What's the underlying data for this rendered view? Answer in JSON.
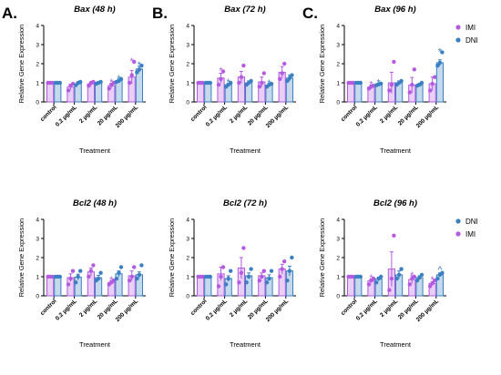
{
  "figure": {
    "panel_letters": [
      "A.",
      "B.",
      "C."
    ],
    "colors": {
      "IMI": "#b45ae0",
      "DNI": "#3a7fc1"
    }
  },
  "chart_data": [
    {
      "type": "bar",
      "letter": "A.",
      "title": "Bax (48 h)",
      "ylabel": "Relative Gene Expression",
      "xlabel": "Treatment",
      "ylim": [
        0,
        4
      ],
      "yticks": [
        0,
        1,
        2,
        3,
        4
      ],
      "grid": false,
      "categories": [
        "control",
        "0.2 µg/mL",
        "2 µg/mL",
        "20 µg/mL",
        "200 µg/mL"
      ],
      "series": [
        {
          "name": "IMI",
          "values": [
            1.0,
            0.78,
            0.95,
            0.85,
            1.3
          ],
          "errors": [
            0.03,
            0.15,
            0.1,
            0.12,
            0.35
          ],
          "points": [
            [
              1.0,
              1.0,
              1.0
            ],
            [
              0.6,
              0.85,
              0.95
            ],
            [
              0.85,
              1.0,
              1.05
            ],
            [
              0.7,
              0.9,
              1.0
            ],
            [
              1.0,
              1.4,
              2.1
            ]
          ],
          "marks": [
            "",
            "",
            "",
            "*",
            "*"
          ]
        },
        {
          "name": "DNI",
          "values": [
            1.0,
            0.95,
            1.0,
            1.12,
            1.72
          ],
          "errors": [
            0.03,
            0.08,
            0.06,
            0.08,
            0.15
          ],
          "points": [
            [
              1.0,
              1.0,
              1.0
            ],
            [
              0.88,
              1.0,
              1.05
            ],
            [
              0.95,
              1.0,
              1.05
            ],
            [
              1.05,
              1.1,
              1.2
            ],
            [
              1.55,
              1.7,
              1.9
            ]
          ],
          "marks": [
            "",
            "",
            "",
            "*",
            "*"
          ]
        }
      ]
    },
    {
      "type": "bar",
      "letter": "B.",
      "title": "Bax (72 h)",
      "ylabel": "Relative Gene Expression",
      "xlabel": "Treatment",
      "ylim": [
        0,
        4
      ],
      "yticks": [
        0,
        1,
        2,
        3,
        4
      ],
      "grid": false,
      "categories": [
        "control",
        "0.2 µg/mL",
        "2 µg/mL",
        "20 µg/mL",
        "200 µg/mL"
      ],
      "series": [
        {
          "name": "IMI",
          "values": [
            1.0,
            1.25,
            1.3,
            1.05,
            1.55
          ],
          "errors": [
            0.03,
            0.25,
            0.3,
            0.25,
            0.3
          ],
          "points": [
            [
              1.0,
              1.0,
              1.0
            ],
            [
              0.9,
              1.2,
              1.6
            ],
            [
              1.0,
              1.3,
              1.9
            ],
            [
              0.8,
              1.0,
              1.5
            ],
            [
              1.2,
              1.5,
              2.0
            ]
          ],
          "marks": [
            "",
            "*",
            "",
            "",
            ""
          ]
        },
        {
          "name": "DNI",
          "values": [
            1.0,
            0.9,
            1.0,
            0.88,
            1.25
          ],
          "errors": [
            0.03,
            0.08,
            0.1,
            0.08,
            0.15
          ],
          "points": [
            [
              1.0,
              1.0,
              1.0
            ],
            [
              0.8,
              0.9,
              1.0
            ],
            [
              0.9,
              1.0,
              1.1
            ],
            [
              0.8,
              0.9,
              0.95
            ],
            [
              1.1,
              1.25,
              1.4
            ]
          ],
          "marks": [
            "",
            "*",
            "",
            "*",
            ""
          ]
        }
      ]
    },
    {
      "type": "bar",
      "letter": "C.",
      "title": "Bax (96 h)",
      "ylabel": "Relative Gene Expression",
      "xlabel": "Treatment",
      "ylim": [
        0,
        4
      ],
      "yticks": [
        0,
        1,
        2,
        3,
        4
      ],
      "grid": false,
      "legend": [
        "IMI",
        "DNI"
      ],
      "legend_position": "top-right",
      "categories": [
        "control",
        "0.2 µg/mL",
        "2 µg/mL",
        "20 µg/mL",
        "200 µg/mL"
      ],
      "series": [
        {
          "name": "IMI",
          "values": [
            1.0,
            0.78,
            1.0,
            0.88,
            0.95
          ],
          "errors": [
            0.03,
            0.1,
            0.55,
            0.4,
            0.35
          ],
          "points": [
            [
              1.0,
              1.0,
              1.0
            ],
            [
              0.7,
              0.8,
              0.85
            ],
            [
              0.6,
              0.9,
              2.1
            ],
            [
              0.5,
              0.9,
              1.7
            ],
            [
              0.6,
              0.95,
              1.3
            ]
          ],
          "marks": [
            "",
            "*",
            "",
            "",
            ""
          ]
        },
        {
          "name": "DNI",
          "values": [
            1.0,
            0.92,
            1.0,
            0.9,
            2.05
          ],
          "errors": [
            0.03,
            0.05,
            0.1,
            0.08,
            0.15
          ],
          "points": [
            [
              1.0,
              1.0,
              1.0
            ],
            [
              0.88,
              0.92,
              0.96
            ],
            [
              0.9,
              1.0,
              1.1
            ],
            [
              0.85,
              0.9,
              1.0
            ],
            [
              1.9,
              2.05,
              2.6
            ]
          ],
          "marks": [
            "",
            "*",
            "",
            "",
            "*"
          ]
        }
      ]
    },
    {
      "type": "bar",
      "letter": "",
      "title": "Bcl2 (48 h)",
      "ylabel": "Relative Gene Expression",
      "xlabel": "Treatment",
      "ylim": [
        0,
        4
      ],
      "yticks": [
        0,
        1,
        2,
        3,
        4
      ],
      "grid": false,
      "categories": [
        "control",
        "0.2 µg/mL",
        "2 µg/mL",
        "20 µg/mL",
        "200 µg/mL"
      ],
      "series": [
        {
          "name": "IMI",
          "values": [
            1.0,
            0.95,
            1.25,
            0.7,
            1.05
          ],
          "errors": [
            0.03,
            0.2,
            0.2,
            0.1,
            0.25
          ],
          "points": [
            [
              1.0,
              1.0,
              1.0
            ],
            [
              0.6,
              0.9,
              1.3
            ],
            [
              1.0,
              1.3,
              1.6
            ],
            [
              0.6,
              0.7,
              0.8
            ],
            [
              0.8,
              1.0,
              1.5
            ]
          ],
          "marks": [
            "",
            "",
            "",
            "*",
            ""
          ]
        },
        {
          "name": "DNI",
          "values": [
            1.0,
            0.98,
            0.95,
            1.15,
            1.1
          ],
          "errors": [
            0.03,
            0.15,
            0.12,
            0.15,
            0.15
          ],
          "points": [
            [
              1.0,
              1.0,
              1.0
            ],
            [
              0.7,
              1.0,
              1.3
            ],
            [
              0.8,
              0.9,
              1.2
            ],
            [
              0.9,
              1.2,
              1.5
            ],
            [
              0.9,
              1.1,
              1.6
            ]
          ],
          "marks": [
            "",
            "",
            "",
            "",
            ""
          ]
        }
      ]
    },
    {
      "type": "bar",
      "letter": "",
      "title": "Bcl2 (72 h)",
      "ylabel": "Relative Gene Expression",
      "xlabel": "Treatment",
      "ylim": [
        0,
        4
      ],
      "yticks": [
        0,
        1,
        2,
        3,
        4
      ],
      "grid": false,
      "categories": [
        "control",
        "0.2 µg/mL",
        "2 µg/mL",
        "20 µg/mL",
        "200 µg/mL"
      ],
      "series": [
        {
          "name": "IMI",
          "values": [
            1.0,
            1.15,
            1.45,
            1.05,
            1.4
          ],
          "errors": [
            0.03,
            0.35,
            0.55,
            0.15,
            0.25
          ],
          "points": [
            [
              1.0,
              1.0,
              1.0
            ],
            [
              0.5,
              1.0,
              1.5
            ],
            [
              0.7,
              1.2,
              2.5
            ],
            [
              0.8,
              1.0,
              1.3
            ],
            [
              1.0,
              1.4,
              1.8
            ]
          ],
          "marks": [
            "",
            "",
            "",
            "",
            ""
          ]
        },
        {
          "name": "DNI",
          "values": [
            1.0,
            0.9,
            1.05,
            0.95,
            1.3
          ],
          "errors": [
            0.03,
            0.15,
            0.15,
            0.15,
            0.25
          ],
          "points": [
            [
              1.0,
              1.0,
              1.0
            ],
            [
              0.6,
              0.9,
              1.3
            ],
            [
              0.7,
              1.0,
              1.4
            ],
            [
              0.7,
              0.9,
              1.3
            ],
            [
              0.8,
              1.3,
              2.0
            ]
          ],
          "marks": [
            "",
            "",
            "",
            "",
            ""
          ]
        }
      ]
    },
    {
      "type": "bar",
      "letter": "",
      "title": "Bcl2 (96 h)",
      "ylabel": "Relative Gene Expression",
      "xlabel": "Treatment",
      "ylim": [
        0,
        4
      ],
      "yticks": [
        0,
        1,
        2,
        3,
        4
      ],
      "grid": false,
      "legend": [
        "DNI",
        "IMI"
      ],
      "legend_position": "top-right",
      "categories": [
        "control",
        "0.2 µg/mL",
        "2 µg/mL",
        "20 µg/mL",
        "200 µg/mL"
      ],
      "series": [
        {
          "name": "IMI",
          "values": [
            1.0,
            0.78,
            1.4,
            0.85,
            0.65
          ],
          "errors": [
            0.03,
            0.1,
            0.9,
            0.2,
            0.1
          ],
          "points": [
            [
              1.0,
              1.0,
              1.0
            ],
            [
              0.6,
              0.8,
              0.9
            ],
            [
              0.3,
              0.9,
              3.15
            ],
            [
              0.6,
              0.9,
              1.0
            ],
            [
              0.5,
              0.65,
              0.8
            ]
          ],
          "marks": [
            "",
            "*",
            "",
            "*",
            "*"
          ]
        },
        {
          "name": "DNI",
          "values": [
            1.0,
            0.88,
            1.1,
            0.95,
            1.1
          ],
          "errors": [
            0.03,
            0.1,
            0.2,
            0.1,
            0.1
          ],
          "points": [
            [
              1.0,
              1.0,
              1.0
            ],
            [
              0.7,
              0.9,
              1.0
            ],
            [
              0.9,
              1.1,
              1.4
            ],
            [
              0.8,
              0.95,
              1.1
            ],
            [
              0.9,
              1.1,
              1.2
            ]
          ],
          "marks": [
            "",
            "",
            "",
            "",
            "^"
          ]
        }
      ]
    }
  ]
}
